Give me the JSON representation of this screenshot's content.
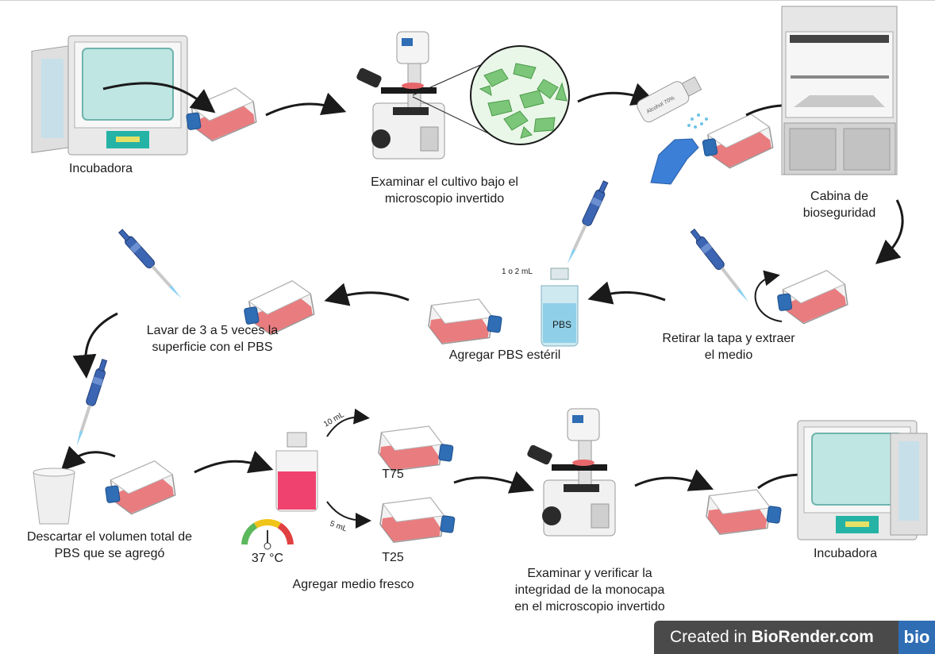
{
  "labels": {
    "incubator_1": "Incubadora",
    "examine_microscope": "Examinar el cultivo bajo el\nmicroscopio invertido",
    "biosafety_cabinet": "Cabina de\nbioseguridad",
    "remove_cap": "Retirar la tapa y extraer\nel medio",
    "add_pbs": "Agregar PBS estéril",
    "wash": "Lavar de 3 a 5 veces la\nsuperficie con el PBS",
    "discard": "Descartar el volumen total de\nPBS que se agregó",
    "add_medium": "Agregar medio fresco",
    "temperature": "37 °C",
    "t75": "T75",
    "t25": "T25",
    "verify": "Examinar y verificar la\nintegridad de la monocapa\nen el  microscopio invertido",
    "incubator_2": "Incubadora"
  },
  "annotations": {
    "pbs_volume": "1 o 2 mL",
    "bottle_label": "PBS",
    "spray_label": "Alcohol 70%",
    "vol_10": "10 mL",
    "vol_5": "5 mL"
  },
  "badge": {
    "prefix": "Created in ",
    "brand": "BioRender.com",
    "logo": "bio"
  },
  "colors": {
    "flask_medium": "#e8676b",
    "cap_blue": "#2f6db5",
    "glove_blue": "#3b7fd6",
    "cells_green": "#7cc67a",
    "medium_bottle": "#f0426f",
    "pbs_bottle": "#8fd0e8"
  }
}
